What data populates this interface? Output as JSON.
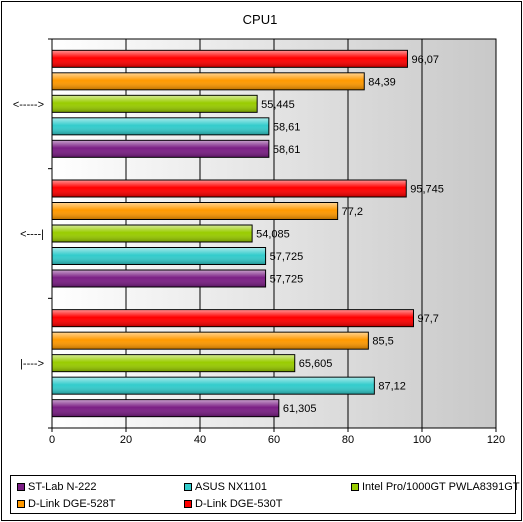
{
  "chart_data": {
    "type": "bar",
    "orientation": "horizontal",
    "title": "CPU1",
    "categories": [
      "<----->",
      "<----|",
      "|---->"
    ],
    "xlim": [
      0,
      120
    ],
    "xticks": [
      "0",
      "20",
      "40",
      "60",
      "80",
      "100",
      "120"
    ],
    "grid": true,
    "legend_position": "bottom",
    "series": [
      {
        "name": "ST-Lab N-222",
        "color": "#7b1f85",
        "values": [
          58.61,
          57.725,
          61.305
        ],
        "labels": [
          "58,61",
          "57,725",
          "61,305"
        ]
      },
      {
        "name": "ASUS NX1101",
        "color": "#33cccc",
        "values": [
          58.61,
          57.725,
          87.12
        ],
        "labels": [
          "58,61",
          "57,725",
          "87,12"
        ]
      },
      {
        "name": "Intel Pro/1000GT PWLA8391GT",
        "color": "#99cc00",
        "values": [
          55.445,
          54.085,
          65.605
        ],
        "labels": [
          "55,445",
          "54,085",
          "65,605"
        ]
      },
      {
        "name": "D-Link DGE-528T",
        "color": "#ff9900",
        "values": [
          84.39,
          77.2,
          85.5
        ],
        "labels": [
          "84,39",
          "77,2",
          "85,5"
        ]
      },
      {
        "name": "D-Link DGE-530T",
        "color": "#ff0000",
        "values": [
          96.07,
          95.745,
          97.7
        ],
        "labels": [
          "96,07",
          "95,745",
          "97,7"
        ]
      }
    ]
  }
}
